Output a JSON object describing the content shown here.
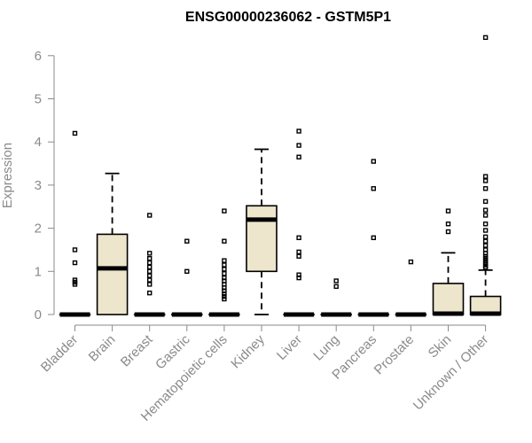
{
  "chart_data": {
    "type": "boxplot",
    "title": "ENSG00000236062 - GSTM5P1",
    "xlabel": "",
    "ylabel": "Expression",
    "ylim": [
      0,
      6.5
    ],
    "yticks": [
      0,
      1,
      2,
      3,
      4,
      5,
      6
    ],
    "grid": false,
    "categories": [
      "Bladder",
      "Brain",
      "Breast",
      "Gastric",
      "Hematopoietic cells",
      "Kidney",
      "Liver",
      "Lung",
      "Pancreas",
      "Prostate",
      "Skin",
      "Unknown / Other"
    ],
    "boxes": [
      {
        "q1": 0,
        "median": 0,
        "q3": 0,
        "whisker_low": 0,
        "whisker_high": 0,
        "outliers": [
          4.2,
          1.5,
          1.2,
          0.8,
          0.75,
          0.7
        ]
      },
      {
        "q1": 0,
        "median": 1.07,
        "q3": 1.86,
        "whisker_low": 0,
        "whisker_high": 3.27,
        "outliers": []
      },
      {
        "q1": 0,
        "median": 0,
        "q3": 0,
        "whisker_low": 0,
        "whisker_high": 0,
        "outliers": [
          2.3,
          1.42,
          1.3,
          1.2,
          1.1,
          1.0,
          0.9,
          0.8,
          0.7,
          0.5
        ]
      },
      {
        "q1": 0,
        "median": 0,
        "q3": 0,
        "whisker_low": 0,
        "whisker_high": 0,
        "outliers": [
          1.7,
          1.0
        ]
      },
      {
        "q1": 0,
        "median": 0,
        "q3": 0,
        "whisker_low": 0,
        "whisker_high": 0,
        "outliers": [
          2.4,
          1.7,
          1.25,
          1.15,
          1.05,
          0.95,
          0.85,
          0.78,
          0.7,
          0.62,
          0.55,
          0.48,
          0.42,
          0.36
        ]
      },
      {
        "q1": 1.0,
        "median": 2.2,
        "q3": 2.52,
        "whisker_low": 0,
        "whisker_high": 3.83,
        "outliers": []
      },
      {
        "q1": 0,
        "median": 0,
        "q3": 0,
        "whisker_low": 0,
        "whisker_high": 0,
        "outliers": [
          4.25,
          3.92,
          3.65,
          1.78,
          1.45,
          1.35,
          0.92,
          0.85
        ]
      },
      {
        "q1": 0,
        "median": 0,
        "q3": 0,
        "whisker_low": 0,
        "whisker_high": 0,
        "outliers": [
          0.78,
          0.65
        ]
      },
      {
        "q1": 0,
        "median": 0,
        "q3": 0,
        "whisker_low": 0,
        "whisker_high": 0,
        "outliers": [
          3.55,
          2.92,
          1.78
        ]
      },
      {
        "q1": 0,
        "median": 0,
        "q3": 0,
        "whisker_low": 0,
        "whisker_high": 0,
        "outliers": [
          1.22
        ]
      },
      {
        "q1": 0,
        "median": 0.02,
        "q3": 0.72,
        "whisker_low": 0,
        "whisker_high": 1.43,
        "outliers": [
          2.4,
          2.1,
          1.92
        ]
      },
      {
        "q1": 0,
        "median": 0.02,
        "q3": 0.42,
        "whisker_low": 0,
        "whisker_high": 1.03,
        "outliers": [
          6.42,
          3.2,
          3.1,
          2.92,
          2.62,
          2.42,
          2.3,
          2.1,
          1.95,
          1.8,
          1.7,
          1.6,
          1.5,
          1.42,
          1.35,
          1.3,
          1.25,
          1.2,
          1.15,
          1.1,
          1.08
        ]
      }
    ]
  }
}
